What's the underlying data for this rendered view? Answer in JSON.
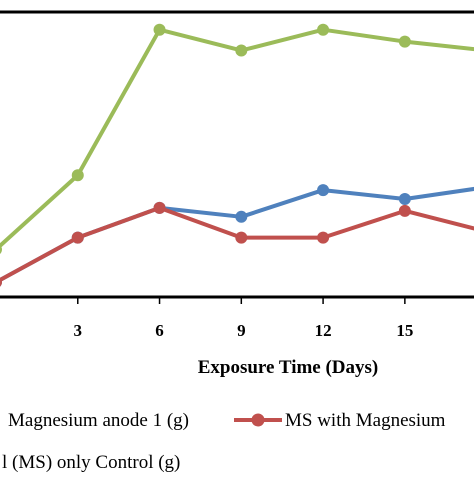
{
  "chart_data": {
    "type": "line",
    "title": "",
    "xlabel": "Exposure Time (Days)",
    "ylabel": "",
    "x": [
      0,
      3,
      6,
      9,
      12,
      15,
      18
    ],
    "xticks": [
      "3",
      "6",
      "9",
      "12",
      "15"
    ],
    "xlim": [
      0,
      17.5
    ],
    "ylim": [
      0,
      1
    ],
    "grid": false,
    "legend_position": "bottom",
    "series": [
      {
        "name": "Magnesium anode 1 (g)",
        "color": "#9BBB59",
        "values": [
          0.16,
          0.41,
          0.9,
          0.83,
          0.9,
          0.86,
          0.83
        ]
      },
      {
        "name": "MS with Magnesium",
        "color": "#4F81BD",
        "values": [
          0.05,
          0.2,
          0.3,
          0.27,
          0.36,
          0.33,
          0.37
        ]
      },
      {
        "name": "MS with Magnesium",
        "color": "#C0504D",
        "values": [
          0.05,
          0.2,
          0.3,
          0.2,
          0.2,
          0.29,
          0.22
        ]
      }
    ],
    "legend": [
      {
        "text": "Magnesium anode 1 (g)",
        "series": 0,
        "marker": false
      },
      {
        "text": "MS with Magnesium",
        "series": 2,
        "marker": true
      },
      {
        "text": "l (MS) only Control (g)",
        "series": null,
        "marker": false
      }
    ]
  }
}
